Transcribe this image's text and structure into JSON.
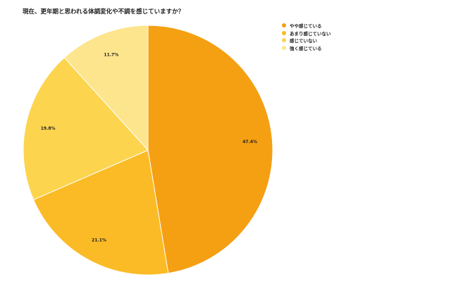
{
  "chart_data": {
    "type": "pie",
    "title": "現在、更年期と思われる体調変化や不調を感じていますか？",
    "categories": [
      "やや感じている",
      "あまり感じていない",
      "感じていない",
      "強く感じている"
    ],
    "values": [
      47.4,
      21.1,
      19.8,
      11.7
    ],
    "value_labels": [
      "47.4%",
      "21.1%",
      "19.8%",
      "11.7%"
    ],
    "colors": [
      "#F4A012",
      "#FBBB26",
      "#FCD44E",
      "#FDE58E"
    ],
    "legend_position": "right-top",
    "start_angle": "12 o'clock, clockwise"
  },
  "title": "現在、更年期と思われる体調変化や不調を感じていますか？",
  "legend": {
    "items": [
      {
        "label": "やや感じている",
        "color": "#F4A012"
      },
      {
        "label": "あまり感じていない",
        "color": "#FBBB26"
      },
      {
        "label": "感じていない",
        "color": "#FCD44E"
      },
      {
        "label": "強く感じている",
        "color": "#FDE58E"
      }
    ]
  }
}
